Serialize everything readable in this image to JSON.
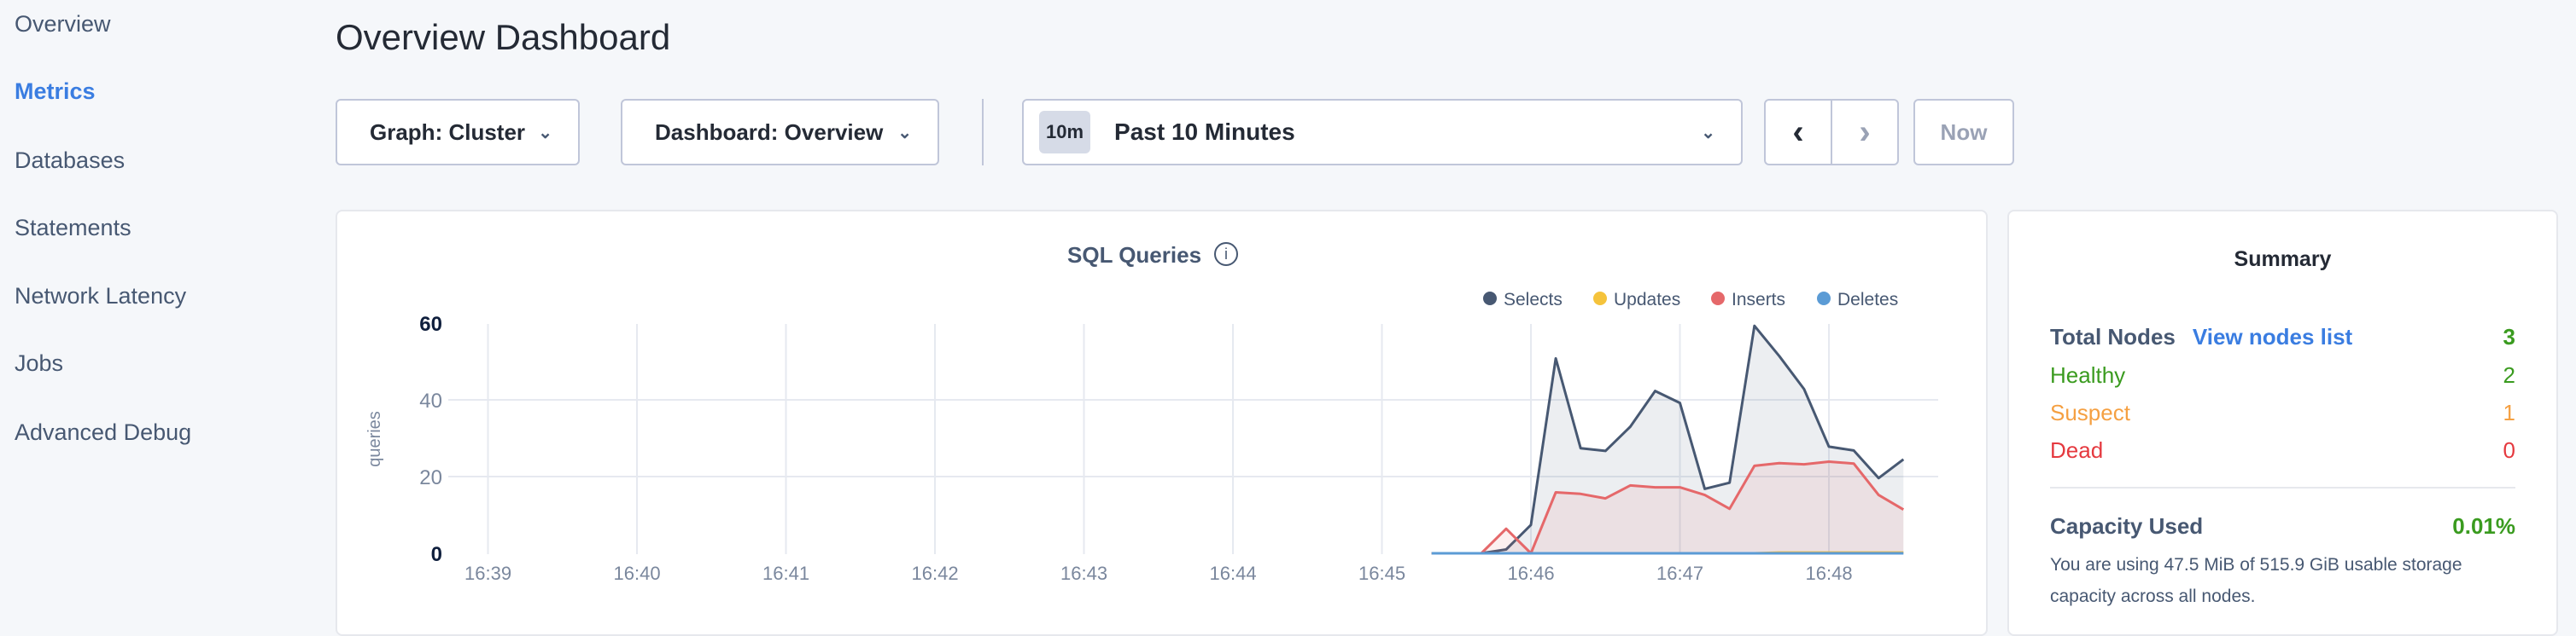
{
  "sidebar": {
    "items": [
      {
        "label": "Overview",
        "active": false
      },
      {
        "label": "Metrics",
        "active": true
      },
      {
        "label": "Databases",
        "active": false
      },
      {
        "label": "Statements",
        "active": false
      },
      {
        "label": "Network Latency",
        "active": false
      },
      {
        "label": "Jobs",
        "active": false
      },
      {
        "label": "Advanced Debug",
        "active": false
      }
    ]
  },
  "header": {
    "title": "Overview Dashboard"
  },
  "toolbar": {
    "graph_select": "Graph: Cluster",
    "dashboard_select": "Dashboard: Overview",
    "time_badge": "10m",
    "time_range": "Past 10 Minutes",
    "prev_icon": "chevron-left-icon",
    "next_icon": "chevron-right-icon",
    "now_label": "Now"
  },
  "summary": {
    "title": "Summary",
    "total_nodes_label": "Total Nodes",
    "view_nodes_link": "View nodes list",
    "total_nodes": "3",
    "healthy_label": "Healthy",
    "healthy": "2",
    "suspect_label": "Suspect",
    "suspect": "1",
    "dead_label": "Dead",
    "dead": "0",
    "capacity_label": "Capacity Used",
    "capacity_value": "0.01%",
    "capacity_text": "You are using 47.5 MiB of 515.9 GiB usable storage capacity across all nodes.",
    "colors": {
      "healthy": "#3a9b1f",
      "suspect": "#f5a042",
      "dead": "#e5393f",
      "link": "#3a7de1"
    }
  },
  "chart_data": {
    "type": "area",
    "title": "SQL Queries",
    "ylabel": "queries",
    "xlabel": "",
    "ylim": [
      0,
      60
    ],
    "yticks": [
      "0",
      "20",
      "40",
      "60"
    ],
    "xlim": [
      "16:38:44",
      "16:48:44"
    ],
    "xticks": [
      "16:39",
      "16:40",
      "16:41",
      "16:42",
      "16:43",
      "16:44",
      "16:45",
      "16:46",
      "16:47",
      "16:48"
    ],
    "grid": true,
    "legend": "top-right",
    "x": [
      "16:45:20",
      "16:45:30",
      "16:45:40",
      "16:45:50",
      "16:46:00",
      "16:46:10",
      "16:46:20",
      "16:46:30",
      "16:46:40",
      "16:46:50",
      "16:47:00",
      "16:47:10",
      "16:47:20",
      "16:47:30",
      "16:47:40",
      "16:47:50",
      "16:48:00",
      "16:48:10",
      "16:48:20",
      "16:48:30"
    ],
    "series": [
      {
        "name": "Selects",
        "color": "#475872",
        "values": [
          0,
          0,
          0,
          1,
          7.4,
          50.8,
          27.4,
          26.7,
          33,
          42.3,
          39.2,
          16.8,
          18.4,
          59.3,
          51.4,
          42.8,
          27.8,
          26.8,
          19.6,
          24.5
        ]
      },
      {
        "name": "Updates",
        "color": "#f5c33b",
        "values": [
          0,
          0,
          0,
          0,
          0,
          0,
          0,
          0,
          0,
          0,
          0,
          0,
          0,
          0,
          0.2,
          0.2,
          0.2,
          0.2,
          0.2,
          0.2
        ]
      },
      {
        "name": "Inserts",
        "color": "#e5686a",
        "values": [
          0,
          0,
          0,
          6.4,
          0,
          15.9,
          15.5,
          14.3,
          17.7,
          17.2,
          17.2,
          15.2,
          11.6,
          22.8,
          23.5,
          23.2,
          23.9,
          23.4,
          15.2,
          11.4
        ]
      },
      {
        "name": "Deletes",
        "color": "#5b9bd5",
        "values": [
          0,
          0,
          0,
          0,
          0,
          0,
          0,
          0,
          0,
          0,
          0,
          0,
          0,
          0,
          0,
          0,
          0,
          0,
          0,
          0
        ]
      }
    ]
  }
}
